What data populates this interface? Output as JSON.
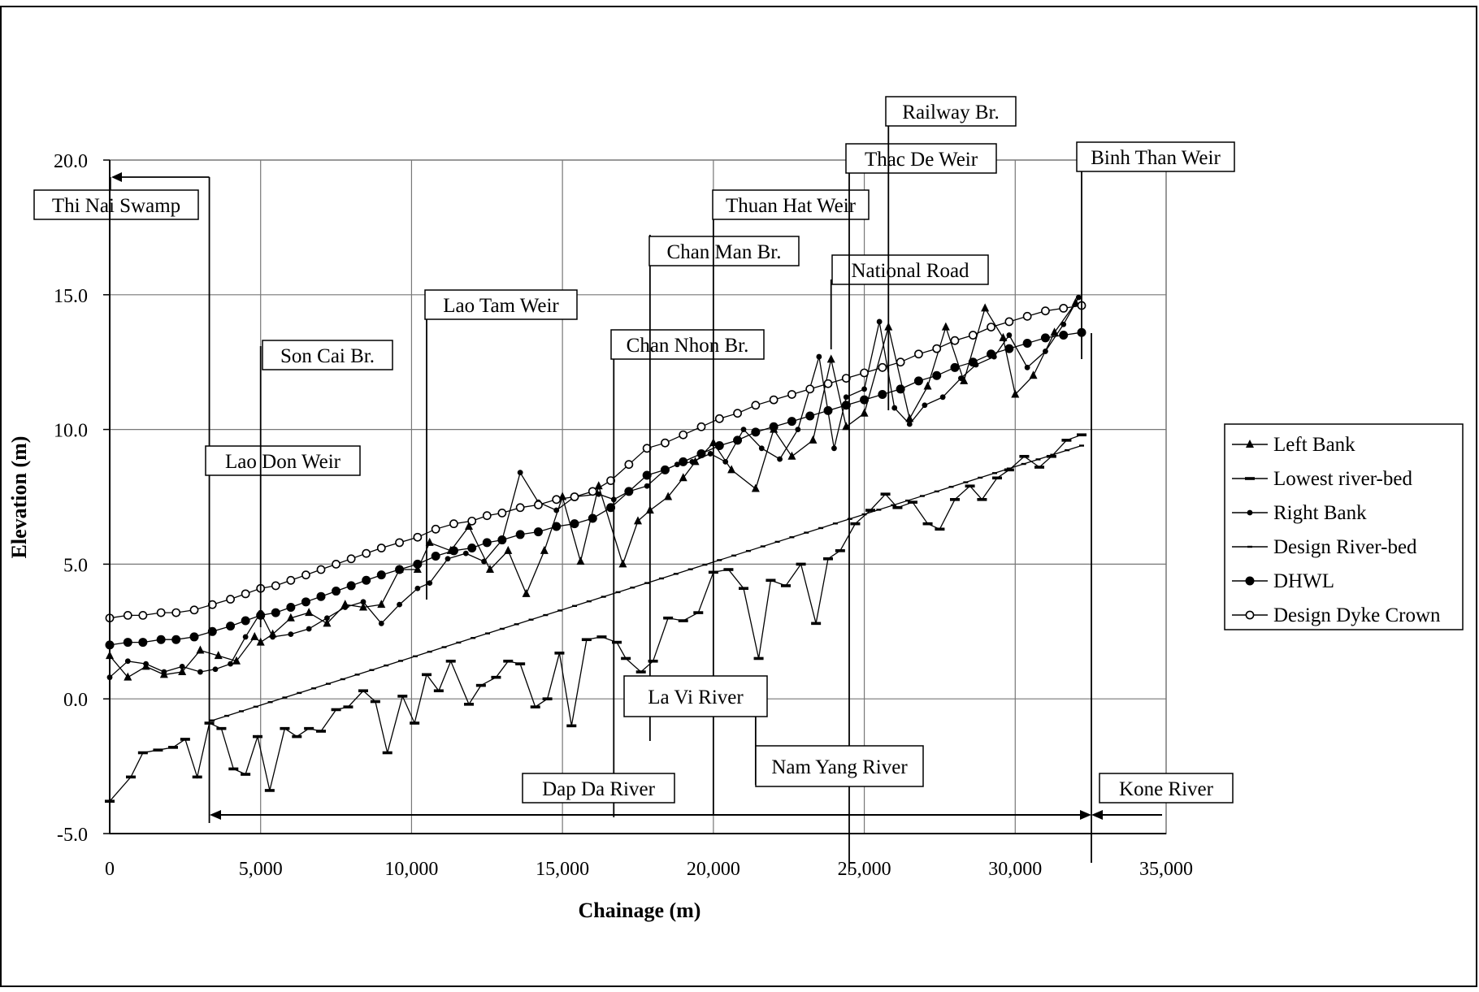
{
  "chart_data": {
    "type": "line",
    "title": "",
    "xlabel": "Chainage (m)",
    "ylabel": "Elevation (m)",
    "xlim": [
      0,
      35000
    ],
    "ylim": [
      -5,
      20
    ],
    "x_ticks": [
      0,
      5000,
      10000,
      15000,
      20000,
      25000,
      30000,
      35000
    ],
    "x_tick_labels": [
      "0",
      "5,000",
      "10,000",
      "15,000",
      "20,000",
      "25,000",
      "30,000",
      "35,000"
    ],
    "y_ticks": [
      -5,
      0,
      5,
      10,
      15,
      20
    ],
    "y_tick_labels": [
      "-5.0",
      "0.0",
      "5.0",
      "10.0",
      "15.0",
      "20.0"
    ],
    "grid": true,
    "legend_position": "right",
    "series": [
      {
        "name": "Left Bank",
        "marker": "triangle",
        "x": [
          0,
          600,
          1200,
          1800,
          2400,
          3000,
          3600,
          4200,
          4800,
          5000,
          5400,
          6000,
          6600,
          7200,
          7800,
          8400,
          9000,
          9600,
          10200,
          10600,
          11300,
          11900,
          12600,
          13200,
          13800,
          14400,
          15000,
          15600,
          16200,
          17000,
          17500,
          17900,
          18500,
          19000,
          19400,
          20000,
          20600,
          21400,
          22000,
          22600,
          23300,
          23900,
          24400,
          25000,
          25800,
          26500,
          27100,
          27700,
          28300,
          29000,
          29600,
          30000,
          30600,
          31300,
          32000
        ],
        "y": [
          1.6,
          0.8,
          1.2,
          0.9,
          1.0,
          1.8,
          1.6,
          1.4,
          2.3,
          2.1,
          2.4,
          3.0,
          3.2,
          2.8,
          3.5,
          3.4,
          3.5,
          4.8,
          4.8,
          5.8,
          5.5,
          6.4,
          4.8,
          5.5,
          3.9,
          5.5,
          7.5,
          5.1,
          7.9,
          5.0,
          6.6,
          7.0,
          7.5,
          8.2,
          8.8,
          9.5,
          8.5,
          7.8,
          10.0,
          9.0,
          9.6,
          12.6,
          10.1,
          10.6,
          13.8,
          10.4,
          11.6,
          13.8,
          11.8,
          14.5,
          13.4,
          11.3,
          12.0,
          13.6,
          14.7
        ]
      },
      {
        "name": "Lowest river-bed",
        "marker": "dash",
        "x": [
          0,
          700,
          1100,
          1600,
          2100,
          2500,
          2900,
          3300,
          3700,
          4100,
          4500,
          4900,
          5300,
          5800,
          6200,
          6600,
          7000,
          7500,
          7900,
          8400,
          8800,
          9200,
          9700,
          10100,
          10500,
          10900,
          11300,
          11900,
          12300,
          12800,
          13200,
          13600,
          14100,
          14500,
          14900,
          15300,
          15800,
          16300,
          16800,
          17100,
          17600,
          18000,
          18500,
          19000,
          19500,
          20000,
          20500,
          21000,
          21500,
          21900,
          22400,
          22900,
          23400,
          23800,
          24200,
          24700,
          25200,
          25700,
          26100,
          26600,
          27100,
          27500,
          28000,
          28500,
          28900,
          29400,
          29800,
          30300,
          30800,
          31200,
          31700,
          32200
        ],
        "y": [
          -3.8,
          -2.9,
          -2.0,
          -1.9,
          -1.8,
          -1.5,
          -2.9,
          -0.9,
          -1.1,
          -2.6,
          -2.8,
          -1.4,
          -3.4,
          -1.1,
          -1.4,
          -1.1,
          -1.2,
          -0.4,
          -0.3,
          0.3,
          -0.1,
          -2.0,
          0.1,
          -0.9,
          0.9,
          0.3,
          1.4,
          -0.2,
          0.5,
          0.8,
          1.4,
          1.3,
          -0.3,
          0.0,
          1.7,
          -1.0,
          2.2,
          2.3,
          2.1,
          1.5,
          1.0,
          1.4,
          3.0,
          2.9,
          3.2,
          4.7,
          4.8,
          4.1,
          1.5,
          4.4,
          4.2,
          5.0,
          2.8,
          5.2,
          5.5,
          6.5,
          7.0,
          7.6,
          7.1,
          7.3,
          6.5,
          6.3,
          7.4,
          7.9,
          7.4,
          8.2,
          8.5,
          9.0,
          8.6,
          9.0,
          9.6,
          9.8
        ]
      },
      {
        "name": "Right Bank",
        "marker": "dot",
        "x": [
          0,
          600,
          1200,
          1800,
          2400,
          3000,
          3500,
          4000,
          4500,
          5000,
          5400,
          6000,
          6600,
          7200,
          7800,
          8400,
          9000,
          9600,
          10200,
          10600,
          11200,
          11800,
          12400,
          13000,
          13600,
          14200,
          14800,
          15400,
          16200,
          16700,
          17200,
          17800,
          18400,
          18800,
          19300,
          19900,
          20400,
          21000,
          21600,
          22200,
          22800,
          23500,
          24000,
          24400,
          25000,
          25500,
          26000,
          26500,
          27000,
          27600,
          28200,
          28700,
          29300,
          29800,
          30400,
          31000,
          31600,
          32100
        ],
        "y": [
          0.8,
          1.4,
          1.3,
          1.0,
          1.2,
          1.0,
          1.1,
          1.3,
          2.3,
          3.2,
          2.3,
          2.4,
          2.6,
          3.0,
          3.4,
          3.6,
          2.8,
          3.5,
          4.1,
          4.3,
          5.2,
          5.4,
          5.1,
          5.9,
          8.4,
          7.3,
          7.0,
          7.5,
          7.6,
          7.4,
          7.7,
          7.9,
          8.5,
          8.7,
          8.8,
          9.1,
          8.8,
          10.0,
          9.3,
          8.9,
          10.0,
          12.7,
          9.3,
          11.2,
          11.5,
          14.0,
          10.8,
          10.2,
          10.9,
          11.2,
          11.9,
          12.4,
          12.7,
          13.5,
          12.3,
          12.9,
          13.9,
          14.9
        ]
      },
      {
        "name": "Design River-bed",
        "marker": "small-dash",
        "x": [
          3400,
          32200
        ],
        "y": [
          -0.8,
          9.4
        ]
      },
      {
        "name": "DHWL",
        "marker": "filled-circle",
        "x": [
          0,
          600,
          1100,
          1700,
          2200,
          2800,
          3400,
          4000,
          4500,
          5000,
          5500,
          6000,
          6500,
          7000,
          7500,
          8000,
          8500,
          9000,
          9600,
          10200,
          10800,
          11400,
          12000,
          12500,
          13000,
          13600,
          14200,
          14800,
          15400,
          16000,
          16600,
          17200,
          17800,
          18400,
          19000,
          19600,
          20200,
          20800,
          21400,
          22000,
          22600,
          23200,
          23800,
          24400,
          25000,
          25600,
          26200,
          26800,
          27400,
          28000,
          28600,
          29200,
          29800,
          30400,
          31000,
          31600,
          32200
        ],
        "y": [
          2.0,
          2.1,
          2.1,
          2.2,
          2.2,
          2.3,
          2.5,
          2.7,
          2.9,
          3.1,
          3.2,
          3.4,
          3.6,
          3.8,
          4.0,
          4.2,
          4.4,
          4.6,
          4.8,
          5.0,
          5.3,
          5.5,
          5.6,
          5.8,
          5.9,
          6.1,
          6.2,
          6.4,
          6.5,
          6.7,
          7.1,
          7.7,
          8.3,
          8.5,
          8.8,
          9.1,
          9.4,
          9.6,
          9.9,
          10.1,
          10.3,
          10.5,
          10.7,
          10.9,
          11.1,
          11.3,
          11.5,
          11.8,
          12.0,
          12.3,
          12.5,
          12.8,
          13.0,
          13.2,
          13.4,
          13.5,
          13.6
        ]
      },
      {
        "name": "Design Dyke Crown",
        "marker": "open-circle",
        "x": [
          0,
          600,
          1100,
          1700,
          2200,
          2800,
          3400,
          4000,
          4500,
          5000,
          5500,
          6000,
          6500,
          7000,
          7500,
          8000,
          8500,
          9000,
          9600,
          10200,
          10800,
          11400,
          12000,
          12500,
          13000,
          13600,
          14200,
          14800,
          15400,
          16000,
          16600,
          17200,
          17800,
          18400,
          19000,
          19600,
          20200,
          20800,
          21400,
          22000,
          22600,
          23200,
          23800,
          24400,
          25000,
          25600,
          26200,
          26800,
          27400,
          28000,
          28600,
          29200,
          29800,
          30400,
          31000,
          31600,
          32200
        ],
        "y": [
          3.0,
          3.1,
          3.1,
          3.2,
          3.2,
          3.3,
          3.5,
          3.7,
          3.9,
          4.1,
          4.2,
          4.4,
          4.6,
          4.8,
          5.0,
          5.2,
          5.4,
          5.6,
          5.8,
          6.0,
          6.3,
          6.5,
          6.6,
          6.8,
          6.9,
          7.1,
          7.2,
          7.4,
          7.5,
          7.7,
          8.1,
          8.7,
          9.3,
          9.5,
          9.8,
          10.1,
          10.4,
          10.6,
          10.9,
          11.1,
          11.3,
          11.5,
          11.7,
          11.9,
          12.1,
          12.3,
          12.5,
          12.8,
          13.0,
          13.3,
          13.5,
          13.8,
          14.0,
          14.2,
          14.4,
          14.5,
          14.6
        ]
      }
    ],
    "annotations": [
      {
        "text": "Thi Nai Swamp",
        "x": 3300
      },
      {
        "text": "Lao Don Weir",
        "x": 3300
      },
      {
        "text": "Son Cai Br.",
        "x": 5000
      },
      {
        "text": "Lao Tam Weir",
        "x": 10500
      },
      {
        "text": "Chan Nhon Br.",
        "x": 16700
      },
      {
        "text": "Chan Man Br.",
        "x": 17900
      },
      {
        "text": "Thuan Hat Weir",
        "x": 20000
      },
      {
        "text": "National Road",
        "x": 23900
      },
      {
        "text": "Thac De Weir",
        "x": 24500
      },
      {
        "text": "Railway Br.",
        "x": 25800
      },
      {
        "text": "Binh Than Weir",
        "x": 32200
      },
      {
        "text": "La Vi River",
        "x": 17000
      },
      {
        "text": "Nam Yang River",
        "x": 21400
      },
      {
        "text": "Dap Da River",
        "x": 16000
      },
      {
        "text": "Kone River",
        "x": 34000
      }
    ]
  }
}
